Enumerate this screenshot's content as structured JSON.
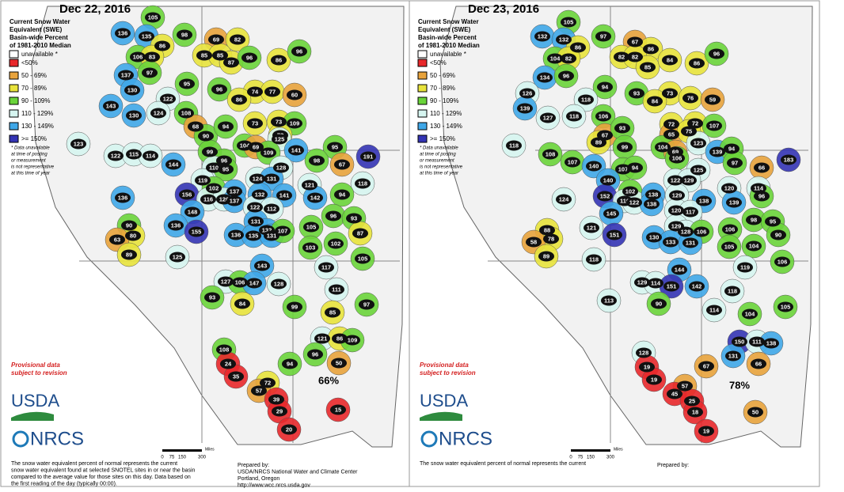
{
  "panels": [
    {
      "title": "Dec 22, 2016",
      "legend": {
        "title": [
          "Current Snow Water",
          "Equivalent (SWE)",
          "Basin-wide Percent",
          "of 1981-2010 Median"
        ],
        "unavailable": "unavailable *",
        "items": [
          {
            "label": "<50%",
            "color": "#e8282b"
          },
          {
            "label": "50 - 69%",
            "color": "#e8a33c"
          },
          {
            "label": "70 - 89%",
            "color": "#e8e33c"
          },
          {
            "label": "90 - 109%",
            "color": "#6ad43a"
          },
          {
            "label": "110 - 129%",
            "color": "#d6f5f0"
          },
          {
            "label": "130 - 149%",
            "color": "#3fa7e8"
          },
          {
            "label": ">= 150%",
            "color": "#3434b4"
          }
        ],
        "note": [
          "* Data unavailable",
          "at time of posting",
          "or measurement",
          "is not representative",
          "at this time of year"
        ]
      },
      "provisional": [
        "Provisional data",
        "subject to revision"
      ],
      "logos": [
        "USDA",
        "NRCS"
      ],
      "scale": {
        "unit": "Miles",
        "ticks": [
          "0",
          "75",
          "150",
          "300"
        ]
      },
      "footer": [
        "The snow water equivalent percent of normal represents the current",
        "snow water equivalent found at selected SNOTEL sites in or near the basin",
        "compared to the average value for those sites on this day. Data based on",
        "the first reading of the day (typically 00:00)."
      ],
      "prepared": [
        "Prepared by:",
        "USDA/NRCS National Water and Climate Center",
        "Portland, Oregon",
        "http://www.wcc.nrcs.usda.gov"
      ],
      "overall": "66%",
      "basins": [
        105,
        136,
        135,
        86,
        98,
        106,
        83,
        97,
        137,
        69,
        82,
        85,
        85,
        87,
        96,
        86,
        96,
        95,
        130,
        143,
        130,
        122,
        124,
        108,
        96,
        74,
        77,
        60,
        86,
        68,
        90,
        94,
        73,
        73,
        109,
        78,
        123,
        122,
        115,
        114,
        99,
        104,
        69,
        125,
        141,
        95,
        96,
        109,
        144,
        110,
        95,
        98,
        67,
        191,
        128,
        119,
        124,
        131,
        102,
        137,
        118,
        121,
        136,
        156,
        116,
        120,
        137,
        132,
        141,
        142,
        94,
        122,
        112,
        96,
        93,
        148,
        136,
        155,
        131,
        90,
        80,
        63,
        132,
        136,
        135,
        131,
        107,
        105,
        87,
        102,
        125,
        89,
        103,
        105,
        143,
        117,
        127,
        106,
        147,
        128,
        93,
        111,
        84,
        99,
        85,
        97,
        121,
        86,
        109,
        108,
        24,
        96,
        94,
        50,
        35,
        72,
        57,
        39,
        29,
        15,
        20
      ]
    },
    {
      "title": "Dec 23, 2016",
      "legend": {
        "title": [
          "Current Snow Water",
          "Equivalent (SWE)",
          "Basin-wide Percent",
          "of 1981-2010 Median"
        ],
        "unavailable": "unavailable *",
        "items": [
          {
            "label": "<50%",
            "color": "#e8282b"
          },
          {
            "label": "50 - 69%",
            "color": "#e8a33c"
          },
          {
            "label": "70 - 89%",
            "color": "#e8e33c"
          },
          {
            "label": "90 - 109%",
            "color": "#6ad43a"
          },
          {
            "label": "110 - 129%",
            "color": "#d6f5f0"
          },
          {
            "label": "130 - 149%",
            "color": "#3fa7e8"
          },
          {
            "label": ">= 150%",
            "color": "#3434b4"
          }
        ],
        "note": [
          "* Data unavailable",
          "at time of posting",
          "or measurement",
          "is not representative",
          "at this time of year"
        ]
      },
      "provisional": [
        "Provisional data",
        "subject to revision"
      ],
      "logos": [
        "USDA",
        "NRCS"
      ],
      "scale": {
        "unit": "Miles",
        "ticks": [
          "0",
          "75",
          "150",
          "300"
        ]
      },
      "footer": [
        "The snow water equivalent percent of normal represents the current"
      ],
      "prepared": [
        "Prepared by:"
      ],
      "overall": "78%",
      "basins": [
        105,
        132,
        132,
        86,
        97,
        104,
        82,
        67,
        86,
        82,
        82,
        85,
        84,
        86,
        96,
        134,
        96,
        94,
        126,
        118,
        93,
        73,
        76,
        59,
        84,
        139,
        127,
        118,
        106,
        72,
        72,
        107,
        67,
        89,
        93,
        65,
        75,
        123,
        118,
        108,
        107,
        99,
        104,
        69,
        106,
        139,
        94,
        140,
        107,
        94,
        97,
        66,
        183,
        125,
        140,
        122,
        129,
        114,
        120,
        102,
        124,
        152,
        116,
        122,
        138,
        138,
        129,
        138,
        139,
        96,
        120,
        117,
        145,
        98,
        95,
        88,
        78,
        58,
        121,
        151,
        129,
        128,
        106,
        106,
        90,
        130,
        133,
        131,
        105,
        104,
        89,
        118,
        106,
        119,
        144,
        129,
        114,
        151,
        142,
        118,
        113,
        90,
        114,
        104,
        105,
        150,
        111,
        138,
        128,
        131,
        19,
        67,
        66,
        19,
        57,
        45,
        25,
        50,
        18,
        19
      ]
    }
  ]
}
